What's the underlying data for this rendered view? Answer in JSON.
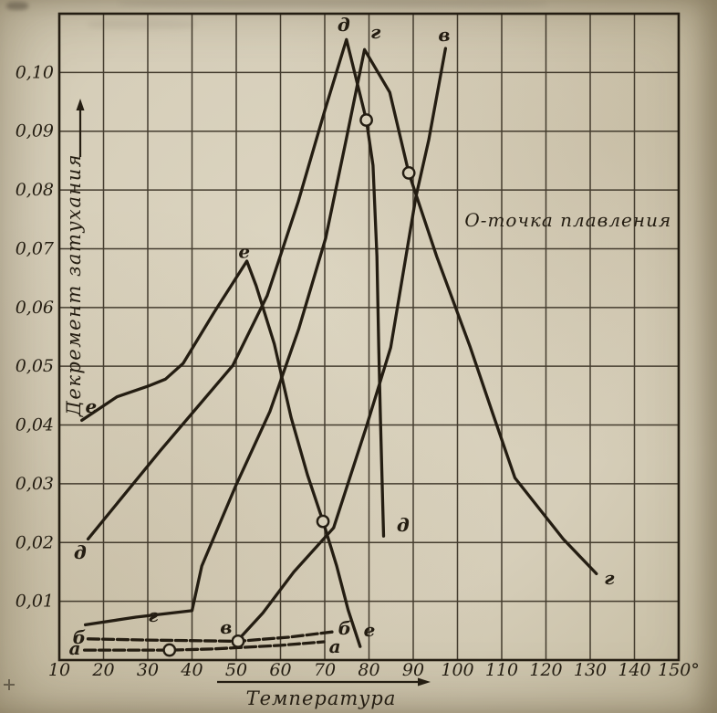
{
  "figure": {
    "paper_color": "#d8d0ba",
    "ink_color": "#241d12",
    "grid_color": "#352d20"
  },
  "chart_data": {
    "type": "line",
    "title": "",
    "xlabel": "Температура",
    "ylabel": "Декремент затухания",
    "xlim": [
      10,
      150
    ],
    "ylim": [
      0,
      0.11
    ],
    "grid": true,
    "x_ticks": [
      {
        "v": 10,
        "label": "10"
      },
      {
        "v": 20,
        "label": "20"
      },
      {
        "v": 30,
        "label": "30"
      },
      {
        "v": 40,
        "label": "40"
      },
      {
        "v": 50,
        "label": "50"
      },
      {
        "v": 60,
        "label": "60"
      },
      {
        "v": 70,
        "label": "70"
      },
      {
        "v": 80,
        "label": "80"
      },
      {
        "v": 90,
        "label": "90"
      },
      {
        "v": 100,
        "label": "100"
      },
      {
        "v": 110,
        "label": "110"
      },
      {
        "v": 120,
        "label": "120"
      },
      {
        "v": 130,
        "label": "130"
      },
      {
        "v": 140,
        "label": "140"
      },
      {
        "v": 150,
        "label": "150°"
      }
    ],
    "y_ticks": [
      {
        "v": 0.01,
        "label": "0,01"
      },
      {
        "v": 0.02,
        "label": "0,02"
      },
      {
        "v": 0.03,
        "label": "0,03"
      },
      {
        "v": 0.04,
        "label": "0,04"
      },
      {
        "v": 0.05,
        "label": "0,05"
      },
      {
        "v": 0.06,
        "label": "0,06"
      },
      {
        "v": 0.07,
        "label": "0,07"
      },
      {
        "v": 0.08,
        "label": "0,08"
      },
      {
        "v": 0.09,
        "label": "0,09"
      },
      {
        "v": 0.1,
        "label": "0,10"
      }
    ],
    "annotation": {
      "text": "О-точка плавления",
      "t": 125,
      "d": 0.0749
    },
    "series": [
      {
        "id": "a",
        "name": "а",
        "dash": "12 4",
        "points": [
          [
            15.7,
            0.0017
          ],
          [
            30,
            0.0017
          ],
          [
            35,
            0.0017
          ],
          [
            45,
            0.0019
          ],
          [
            60,
            0.0025
          ],
          [
            69.8,
            0.0031
          ]
        ],
        "labels": [
          {
            "text": "а",
            "t": 13.5,
            "d": 0.002
          },
          {
            "text": "а",
            "t": 72.3,
            "d": 0.0023
          }
        ]
      },
      {
        "id": "b",
        "name": "б",
        "dash": "12 4",
        "points": [
          [
            16.5,
            0.0036
          ],
          [
            30,
            0.0034
          ],
          [
            50.4,
            0.0032
          ],
          [
            62,
            0.0039
          ],
          [
            71.8,
            0.0048
          ]
        ],
        "labels": [
          {
            "text": "б",
            "t": 14.5,
            "d": 0.0039
          },
          {
            "text": "б",
            "t": 74.5,
            "d": 0.0054
          }
        ]
      },
      {
        "id": "v",
        "name": "в",
        "dash": "",
        "points": [
          [
            50.4,
            0.0034
          ],
          [
            56,
            0.008
          ],
          [
            63,
            0.015
          ],
          [
            72,
            0.0225
          ],
          [
            79.4,
            0.0397
          ],
          [
            84.9,
            0.0532
          ],
          [
            90.6,
            0.0788
          ],
          [
            93.5,
            0.0885
          ],
          [
            97.3,
            0.1041
          ]
        ],
        "labels": [
          {
            "text": "в",
            "t": 47.7,
            "d": 0.0056
          },
          {
            "text": "в",
            "t": 97,
            "d": 0.1064
          }
        ]
      },
      {
        "id": "g",
        "name": "г",
        "dash": "",
        "points": [
          [
            15.9,
            0.006
          ],
          [
            27.3,
            0.0073
          ],
          [
            40,
            0.0084
          ],
          [
            42.2,
            0.016
          ],
          [
            49.8,
            0.0295
          ],
          [
            57.6,
            0.0423
          ],
          [
            64.1,
            0.0563
          ],
          [
            70.2,
            0.0718
          ],
          [
            74.9,
            0.0888
          ],
          [
            79,
            0.1039
          ],
          [
            84.7,
            0.0966
          ],
          [
            89,
            0.0829
          ],
          [
            95.3,
            0.0687
          ],
          [
            102.9,
            0.0532
          ],
          [
            108,
            0.0419
          ],
          [
            113,
            0.031
          ],
          [
            123.9,
            0.0206
          ],
          [
            131.4,
            0.0147
          ]
        ],
        "labels": [
          {
            "text": "г",
            "t": 31.2,
            "d": 0.0076
          },
          {
            "text": "г",
            "t": 81.5,
            "d": 0.1069
          },
          {
            "text": "г",
            "t": 134.3,
            "d": 0.014
          }
        ]
      },
      {
        "id": "d",
        "name": "д",
        "dash": "",
        "points": [
          [
            16.5,
            0.0206
          ],
          [
            32.9,
            0.0357
          ],
          [
            49.2,
            0.0501
          ],
          [
            57,
            0.062
          ],
          [
            64,
            0.078
          ],
          [
            70,
            0.0935
          ],
          [
            74.9,
            0.1056
          ],
          [
            79.4,
            0.0919
          ],
          [
            80.9,
            0.0842
          ],
          [
            81.8,
            0.0687
          ],
          [
            82.2,
            0.0532
          ],
          [
            82.6,
            0.0408
          ],
          [
            83.3,
            0.0211
          ]
        ],
        "labels": [
          {
            "text": "д",
            "t": 14.7,
            "d": 0.0183
          },
          {
            "text": "д",
            "t": 74.3,
            "d": 0.1081
          },
          {
            "text": "д",
            "t": 87.7,
            "d": 0.023
          }
        ]
      },
      {
        "id": "e",
        "name": "е",
        "dash": "",
        "points": [
          [
            15.1,
            0.0408
          ],
          [
            23,
            0.0448
          ],
          [
            30,
            0.0466
          ],
          [
            34,
            0.0478
          ],
          [
            38,
            0.0505
          ],
          [
            45,
            0.0592
          ],
          [
            52.4,
            0.0679
          ],
          [
            54.5,
            0.0637
          ],
          [
            58.6,
            0.0538
          ],
          [
            62.4,
            0.0413
          ],
          [
            66.1,
            0.0315
          ],
          [
            69.6,
            0.0236
          ],
          [
            72.7,
            0.016
          ],
          [
            75.3,
            0.0085
          ],
          [
            78,
            0.0023
          ]
        ],
        "labels": [
          {
            "text": "е",
            "t": 17.2,
            "d": 0.0432
          },
          {
            "text": "е",
            "t": 51.8,
            "d": 0.0695
          },
          {
            "text": "е",
            "t": 80.1,
            "d": 0.0051
          }
        ]
      }
    ],
    "melting_points": [
      {
        "t": 34.9,
        "d": 0.0017
      },
      {
        "t": 50.4,
        "d": 0.0032
      },
      {
        "t": 69.6,
        "d": 0.0236
      },
      {
        "t": 79.4,
        "d": 0.0919
      },
      {
        "t": 89,
        "d": 0.0829
      }
    ]
  }
}
